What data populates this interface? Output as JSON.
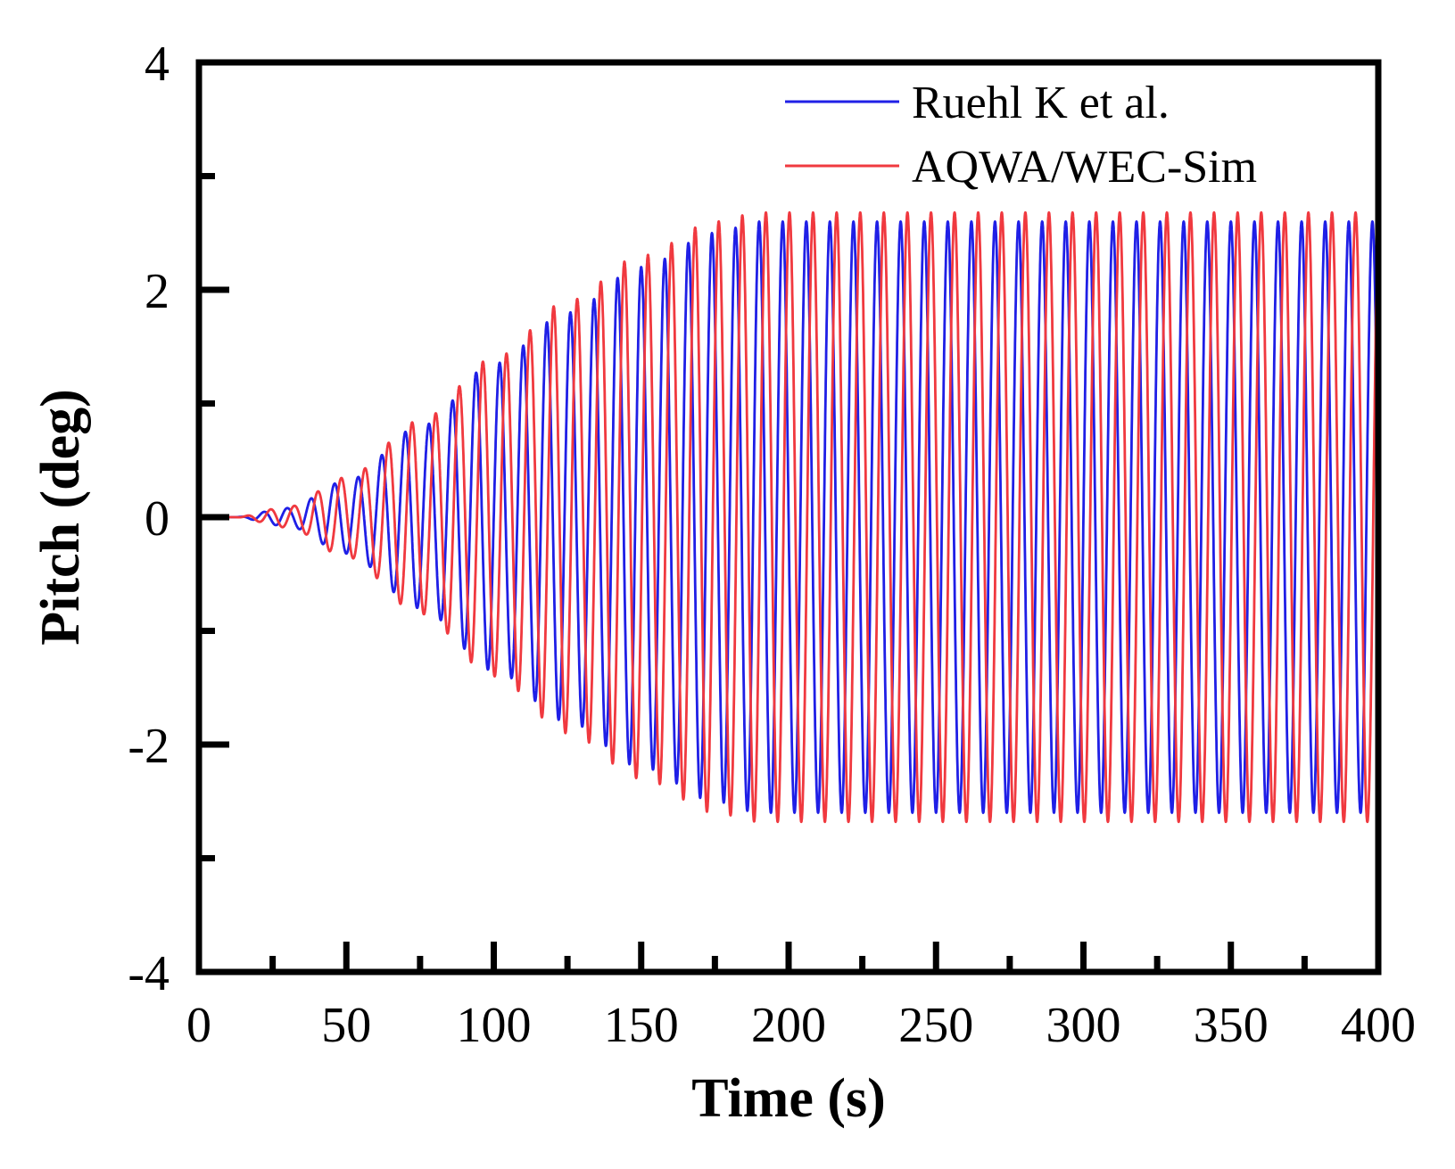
{
  "chart_data": {
    "type": "line",
    "title": "",
    "xlabel": "Time (s)",
    "ylabel": "Pitch (deg)",
    "xlim": [
      0,
      400
    ],
    "ylim": [
      -4,
      4
    ],
    "xticks": [
      0,
      50,
      100,
      150,
      200,
      250,
      300,
      350,
      400
    ],
    "yticks": [
      -4,
      -2,
      0,
      2,
      4
    ],
    "xtick_labels": [
      "0",
      "50",
      "100",
      "150",
      "200",
      "250",
      "300",
      "350",
      "400"
    ],
    "ytick_labels": [
      "-4",
      "-2",
      "0",
      "2",
      "4"
    ],
    "grid": false,
    "legend_position": "top-right",
    "series": [
      {
        "name": "Ruehl K et al.",
        "color": "#1f1fe6",
        "start_time": 12,
        "period": 8.0,
        "amplitude_envelope": {
          "t": [
            12,
            30,
            50,
            75,
            100,
            125,
            150,
            175,
            190,
            400
          ],
          "amp": [
            0.0,
            0.08,
            0.32,
            0.8,
            1.35,
            1.8,
            2.2,
            2.5,
            2.6,
            2.6
          ]
        }
      },
      {
        "name": "AQWA/WEC-Sim",
        "color": "#f0393f",
        "start_time": 12,
        "period": 8.0,
        "phase_lag_s": 2.3,
        "amplitude_envelope": {
          "t": [
            12,
            30,
            50,
            75,
            100,
            125,
            150,
            175,
            190,
            400
          ],
          "amp": [
            0.0,
            0.09,
            0.35,
            0.85,
            1.4,
            1.9,
            2.3,
            2.6,
            2.68,
            2.68
          ]
        }
      }
    ]
  }
}
